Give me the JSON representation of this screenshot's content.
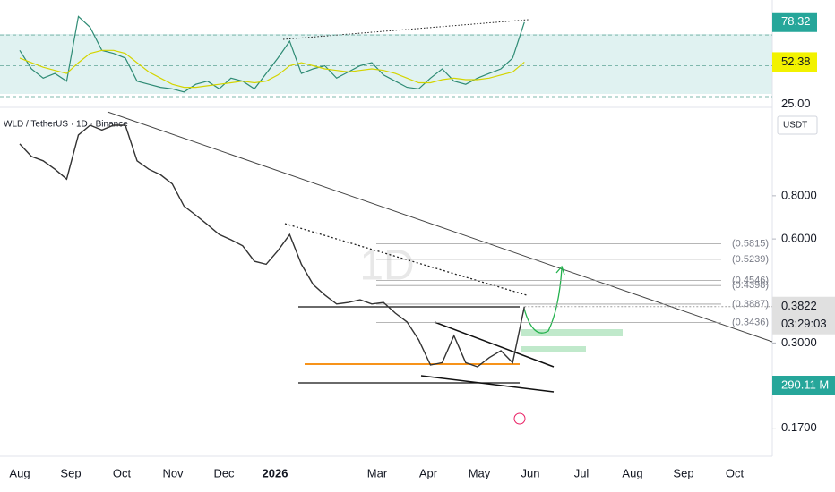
{
  "header": {
    "symbol": "WLD / TetherUS · 1D · Binance",
    "watermark": "1D",
    "currency": "USDT",
    "countdown": "03:29:03",
    "volume_label": "290.11 M"
  },
  "chart_data": [
    {
      "type": "line",
      "ylim": [
        23,
        92.7
      ],
      "yticks": [
        {
          "value": 25,
          "label": "25.00"
        }
      ],
      "levels": [
        70,
        50,
        30
      ],
      "series": [
        {
          "color": "#2e8b74",
          "values": [
            60,
            48,
            42,
            45,
            40,
            82,
            75,
            60,
            58,
            55,
            40,
            38,
            36,
            35,
            33,
            38,
            40,
            35,
            42,
            40,
            35,
            45,
            55,
            66,
            45,
            48,
            50,
            42,
            46,
            50,
            52,
            44,
            40,
            36,
            35,
            42,
            48,
            40,
            38,
            42,
            45,
            48,
            55,
            78.32
          ]
        },
        {
          "color": "#d4d400",
          "values": [
            55,
            52,
            49,
            47,
            45,
            52,
            58,
            60,
            60,
            58,
            52,
            46,
            42,
            38,
            36,
            36,
            37,
            38,
            39,
            40,
            39,
            40,
            44,
            50,
            52,
            50,
            48,
            47,
            46,
            47,
            48,
            47,
            45,
            42,
            39,
            39,
            41,
            42,
            41,
            41,
            42,
            44,
            46,
            52.38
          ]
        }
      ]
    },
    {
      "type": "line",
      "log_scale": true,
      "ylim": [
        0.141,
        1.4
      ],
      "yticks": [
        {
          "value": 0.8,
          "label": "0.8000"
        },
        {
          "value": 0.6,
          "label": "0.6000"
        },
        {
          "value": 0.3,
          "label": "0.3000"
        },
        {
          "value": 0.17,
          "label": "0.1700"
        }
      ],
      "x_labels": [
        "Aug",
        "Sep",
        "Oct",
        "Nov",
        "Dec",
        "2026",
        null,
        "Mar",
        "Apr",
        "May",
        "Jun",
        "Jul",
        "Aug",
        "Sep",
        "Oct"
      ],
      "series": [
        {
          "color": "#333333",
          "values": [
            1.13,
            1.04,
            1.01,
            0.955,
            0.894,
            1.2,
            1.28,
            1.24,
            1.28,
            1.28,
            1.01,
            0.955,
            0.92,
            0.866,
            0.747,
            0.703,
            0.66,
            0.618,
            0.597,
            0.573,
            0.517,
            0.507,
            0.555,
            0.618,
            0.507,
            0.443,
            0.413,
            0.389,
            0.393,
            0.4,
            0.389,
            0.393,
            0.366,
            0.345,
            0.306,
            0.259,
            0.263,
            0.315,
            0.263,
            0.256,
            0.272,
            0.285,
            0.263,
            0.3822
          ]
        }
      ],
      "levels": {
        "values": [
          0.5815,
          0.5239,
          0.4546,
          0.4398,
          0.3887,
          0.3436
        ],
        "value_labels": [
          "(0.5815)",
          "(0.5239)",
          "(0.4546)",
          "(0.4398)",
          "(0.3887)",
          "(0.3436)"
        ]
      }
    }
  ]
}
